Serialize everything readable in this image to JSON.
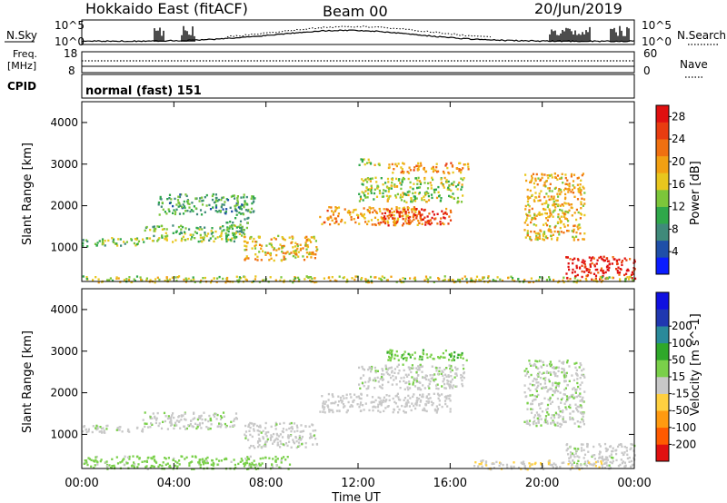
{
  "header": {
    "title": "Hokkaido East (fitACF)",
    "beam": "Beam 00",
    "date": "20/Jun/2019"
  },
  "top_panels": {
    "nsky_label": "N.Sky",
    "nsky_ticks": [
      "10^5",
      "10^0"
    ],
    "nsearch_label": "N.Search",
    "nsearch_ticks": [
      "10^5",
      "10^0"
    ],
    "freq_label_line1": "Freq.",
    "freq_label_line2": "[MHz]",
    "freq_ticks": [
      "18",
      "8"
    ],
    "nave_label": "Nave",
    "nave_ticks": [
      "60",
      "0"
    ],
    "cpid_label": "CPID",
    "cpid_value": "normal (fast) 151"
  },
  "colors": {
    "power_scale": [
      "#0a1cff",
      "#1f4fa8",
      "#3f8a7a",
      "#2fa84a",
      "#7cc63a",
      "#e8c61e",
      "#f2a012",
      "#f07010",
      "#e83c10",
      "#e01010"
    ],
    "velocity_scale": [
      "#e01010",
      "#ff5a00",
      "#ff9a10",
      "#ffd040",
      "#c8c8c8",
      "#7ad04a",
      "#2fa82a",
      "#2a8a9a",
      "#2038b0",
      "#1010e0"
    ],
    "grey_scatter": "#c8c8c8"
  },
  "chart_data": [
    {
      "type": "heatmap",
      "name": "power",
      "xlabel": "",
      "ylabel": "Slant Range [km]",
      "xlim": [
        0,
        24
      ],
      "ylim": [
        180,
        4500
      ],
      "yticks": [
        1000,
        2000,
        3000,
        4000
      ],
      "colorbar_label": "Power [dB]",
      "colorbar_ticks": [
        "4",
        "8",
        "12",
        "16",
        "20",
        "24",
        "28"
      ],
      "colorbar_range": [
        0,
        30
      ],
      "echo_regions": [
        {
          "t0": 0.0,
          "t1": 2.6,
          "r0": 1050,
          "r1": 1250,
          "level": 12
        },
        {
          "t0": 2.6,
          "t1": 6.8,
          "r0": 1150,
          "r1": 1550,
          "level": 13
        },
        {
          "t0": 6.2,
          "t1": 7.2,
          "r0": 1300,
          "r1": 1750,
          "level": 11
        },
        {
          "t0": 7.0,
          "t1": 10.2,
          "r0": 700,
          "r1": 1300,
          "level": 18
        },
        {
          "t0": 3.3,
          "t1": 7.5,
          "r0": 1800,
          "r1": 2300,
          "level": 10
        },
        {
          "t0": 10.3,
          "t1": 14.8,
          "r0": 1550,
          "r1": 2000,
          "level": 20
        },
        {
          "t0": 13.0,
          "t1": 16.0,
          "r0": 1550,
          "r1": 1950,
          "level": 25
        },
        {
          "t0": 12.0,
          "t1": 16.6,
          "r0": 2100,
          "r1": 2700,
          "level": 14
        },
        {
          "t0": 13.2,
          "t1": 16.8,
          "r0": 2800,
          "r1": 3050,
          "level": 20
        },
        {
          "t0": 11.8,
          "t1": 13.0,
          "r0": 3000,
          "r1": 3150,
          "level": 14
        },
        {
          "t0": 19.2,
          "t1": 21.8,
          "r0": 1200,
          "r1": 2800,
          "level": 18
        },
        {
          "t0": 21.0,
          "t1": 24.0,
          "r0": 250,
          "r1": 800,
          "level": 28
        },
        {
          "t0": 0.0,
          "t1": 24.0,
          "r0": 180,
          "r1": 330,
          "level": 16
        }
      ]
    },
    {
      "type": "heatmap",
      "name": "velocity",
      "xlabel": "Time UT",
      "ylabel": "Slant Range [km]",
      "xlim": [
        0,
        24
      ],
      "ylim": [
        180,
        4500
      ],
      "xticks": [
        "00:00",
        "04:00",
        "08:00",
        "12:00",
        "16:00",
        "20:00",
        "00:00"
      ],
      "yticks": [
        1000,
        2000,
        3000,
        4000
      ],
      "colorbar_label": "Velocity [m s^-1]",
      "colorbar_ticks": [
        "-200",
        "-100",
        "-50",
        "-15",
        "15",
        "50",
        "100",
        "200"
      ],
      "colorbar_range": [
        -250,
        250
      ],
      "echo_regions": [
        {
          "t0": 0.0,
          "t1": 2.6,
          "r0": 1050,
          "r1": 1250,
          "velocity": 0
        },
        {
          "t0": 2.6,
          "t1": 6.8,
          "r0": 1150,
          "r1": 1550,
          "velocity": 5
        },
        {
          "t0": 7.0,
          "t1": 10.2,
          "r0": 700,
          "r1": 1300,
          "velocity": 0
        },
        {
          "t0": 10.3,
          "t1": 16.0,
          "r0": 1550,
          "r1": 2000,
          "velocity": -10
        },
        {
          "t0": 12.0,
          "t1": 16.6,
          "r0": 2100,
          "r1": 2700,
          "velocity": 0
        },
        {
          "t0": 13.2,
          "t1": 16.8,
          "r0": 2800,
          "r1": 3050,
          "velocity": 40
        },
        {
          "t0": 19.2,
          "t1": 21.8,
          "r0": 1200,
          "r1": 2800,
          "velocity": 5
        },
        {
          "t0": 21.0,
          "t1": 24.0,
          "r0": 250,
          "r1": 800,
          "velocity": 0
        },
        {
          "t0": 0.0,
          "t1": 9.0,
          "r0": 180,
          "r1": 500,
          "velocity": 30
        },
        {
          "t0": 17.0,
          "t1": 23.0,
          "r0": 180,
          "r1": 400,
          "velocity": -40
        }
      ]
    }
  ]
}
